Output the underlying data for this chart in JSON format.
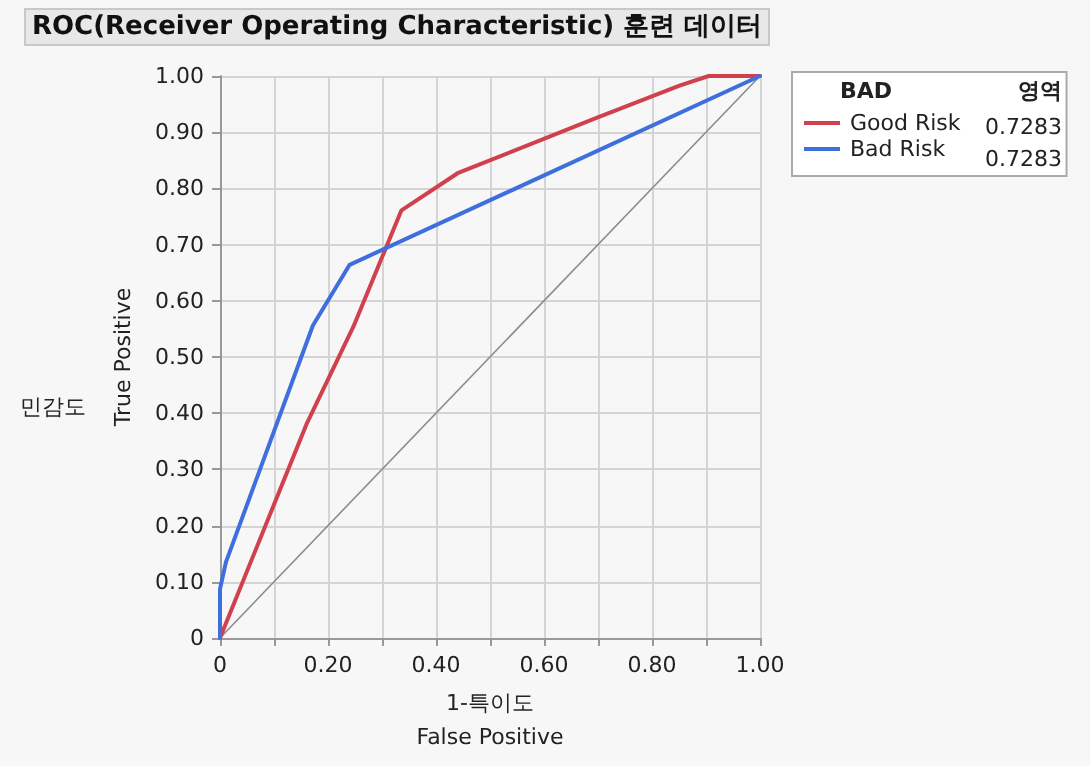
{
  "chart_data": {
    "type": "line",
    "title": "ROC(Receiver Operating Characteristic) 훈련 데이터",
    "xlabel": "1-특이도\nFalse Positive",
    "ylabel": "True Positive",
    "legend_title": "BAD",
    "annotations": [
      "민감도",
      "영역",
      "0.7283",
      "0.7283"
    ],
    "series": [
      {
        "name": "Good Risk",
        "color": "#d0414e",
        "x": [
          0,
          0.16,
          0.247,
          0.336,
          0.44,
          0.696,
          0.851,
          0.905,
          1
        ],
        "values": [
          0,
          0.38,
          0.554,
          0.761,
          0.827,
          0.925,
          0.983,
          1,
          1
        ]
      },
      {
        "name": "Bad Risk",
        "color": "#3e6fdc",
        "x": [
          0,
          0,
          0.011,
          0.172,
          0.24,
          1
        ],
        "values": [
          0,
          0.087,
          0.135,
          0.556,
          0.664,
          1
        ]
      },
      {
        "color": "#8c8c8c",
        "x": [
          0,
          1
        ],
        "values": [
          0,
          1
        ]
      }
    ],
    "xlim": [
      0,
      1
    ],
    "ylim": [
      0,
      1
    ],
    "xticks": [
      0,
      {
        "value": 0.1,
        "label": null
      },
      {
        "value": 0.2,
        "label": "0.20"
      },
      {
        "value": 0.3,
        "label": null
      },
      {
        "value": 0.4,
        "label": "0.40"
      },
      {
        "value": 0.5,
        "label": null
      },
      {
        "value": 0.6,
        "label": "0.60"
      },
      {
        "value": 0.7,
        "label": null
      },
      {
        "value": 0.8,
        "label": "0.80"
      },
      {
        "value": 0.9,
        "label": null
      },
      {
        "value": 1,
        "label": "1.00"
      }
    ],
    "yticks": [
      0,
      {
        "value": 0.1,
        "label": "0.10"
      },
      {
        "value": 0.2,
        "label": "0.20"
      },
      {
        "value": 0.3,
        "label": "0.30"
      },
      {
        "value": 0.4,
        "label": "0.40"
      },
      {
        "value": 0.5,
        "label": "0.50"
      },
      {
        "value": 0.6,
        "label": "0.60"
      },
      {
        "value": 0.7,
        "label": "0.70"
      },
      {
        "value": 0.8,
        "label": "0.80"
      },
      {
        "value": 0.9,
        "label": "0.90"
      },
      {
        "value": 1,
        "label": "1.00"
      }
    ],
    "grid": true,
    "legend": "top right",
    "marker": "none",
    "line_style": "solid"
  }
}
